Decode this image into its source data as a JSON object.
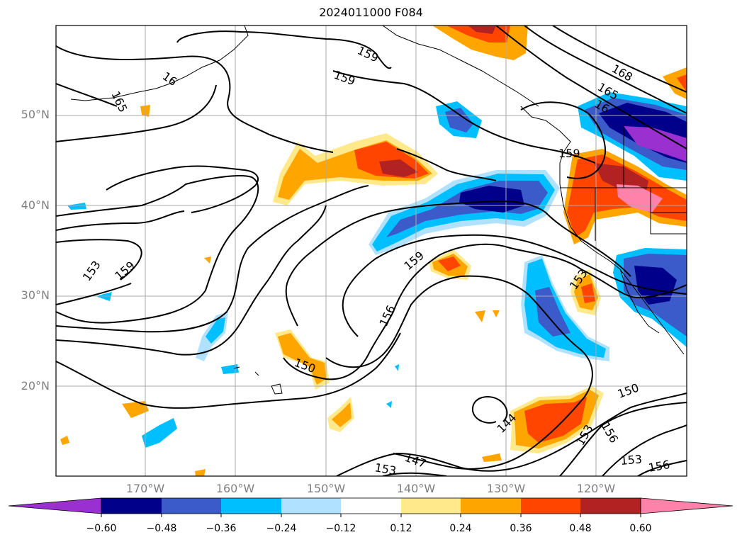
{
  "title": "2024011000 F084",
  "lat_labels": [
    "50°N",
    "40°N",
    "30°N",
    "20°N"
  ],
  "lon_labels": [
    "170°W",
    "160°W",
    "150°W",
    "140°W",
    "130°W",
    "120°W"
  ],
  "contour_labels": [
    "159",
    "159",
    "165",
    "16",
    "168",
    "165",
    "16",
    "159",
    "153",
    "159",
    "159",
    "156",
    "153",
    "150",
    "144",
    "153",
    "156",
    "150",
    "153",
    "156",
    "147",
    "153"
  ],
  "colorbar": {
    "tick_labels": [
      "−0.60",
      "−0.48",
      "−0.36",
      "−0.24",
      "−0.12",
      "0.12",
      "0.24",
      "0.36",
      "0.48",
      "0.60"
    ],
    "colors": [
      "#9b30d0",
      "#00008b",
      "#3a5bc9",
      "#00bfff",
      "#b0e2ff",
      "#ffffff",
      "#ffe98a",
      "#ffa500",
      "#ff4500",
      "#b22222",
      "#ff82ab"
    ]
  }
}
